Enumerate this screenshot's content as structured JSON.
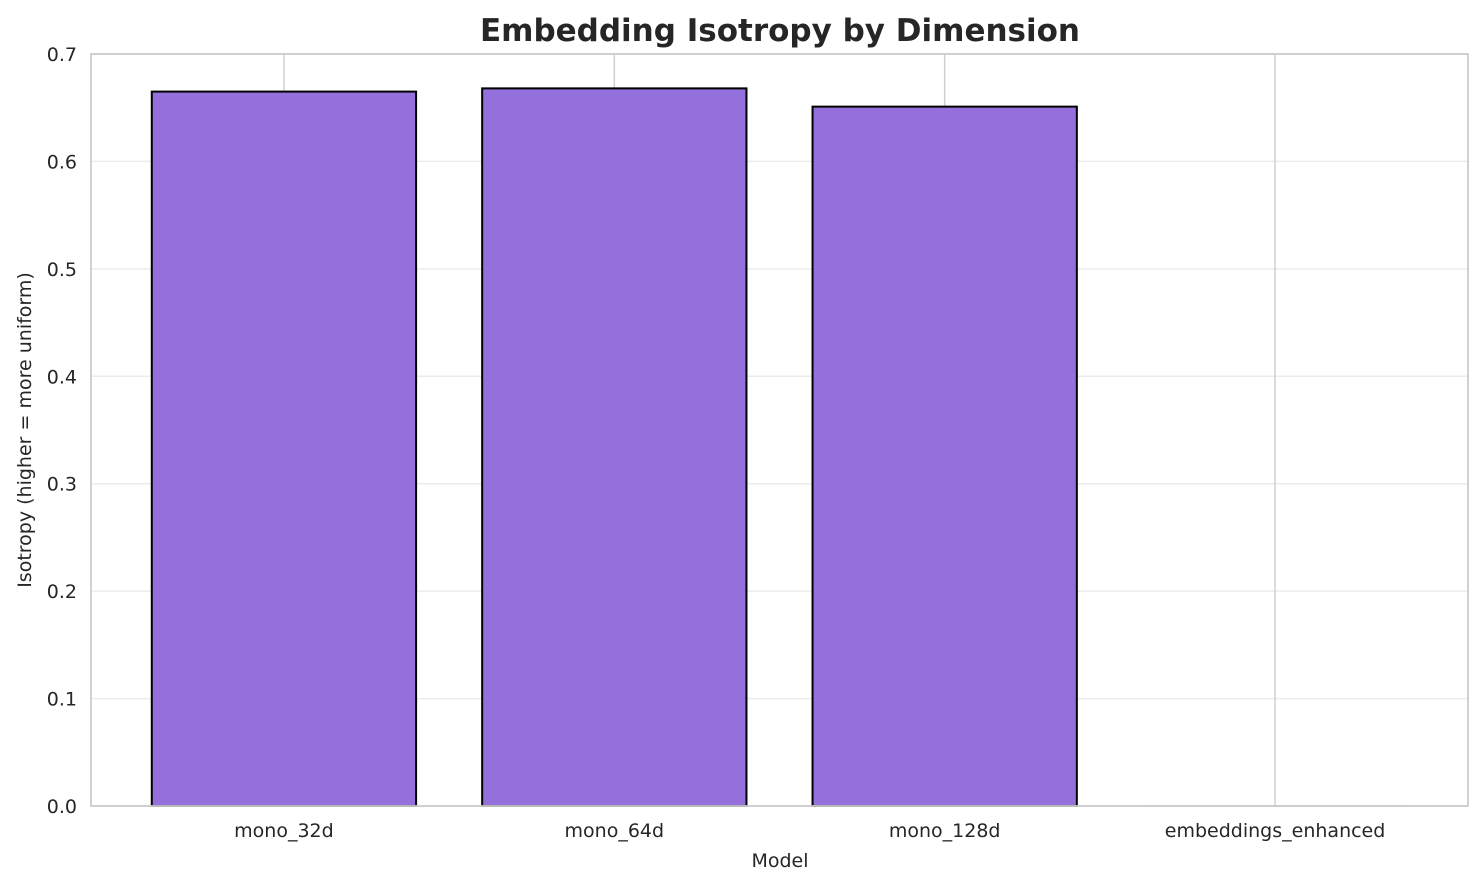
{
  "chart_data": {
    "type": "bar",
    "title": "Embedding Isotropy by Dimension",
    "xlabel": "Model",
    "ylabel": "Isotropy (higher = more uniform)",
    "categories": [
      "mono_32d",
      "mono_64d",
      "mono_128d",
      "embeddings_enhanced"
    ],
    "values": [
      0.665,
      0.668,
      0.651,
      0.0
    ],
    "ylim": [
      0,
      0.7
    ],
    "yticks": [
      "0.0",
      "0.1",
      "0.2",
      "0.3",
      "0.4",
      "0.5",
      "0.6",
      "0.7"
    ],
    "grid": true,
    "bar_color": "#9370db",
    "bar_edge_color": "#000000"
  }
}
